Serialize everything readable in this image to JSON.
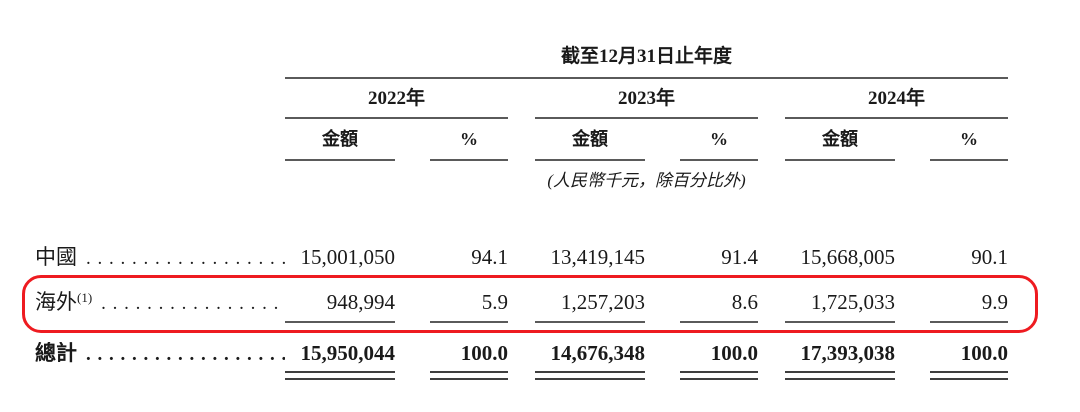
{
  "table": {
    "period_header": "截至12月31日止年度",
    "unit_note": "(人民幣千元，除百分比外)",
    "dot_leader": ". . . . . . . . . . . . . . . . . . . . . .",
    "year_groups": [
      {
        "year": "2022年",
        "amount_label": "金額",
        "percent_label": "%"
      },
      {
        "year": "2023年",
        "amount_label": "金額",
        "percent_label": "%"
      },
      {
        "year": "2024年",
        "amount_label": "金額",
        "percent_label": "%"
      }
    ],
    "rows": [
      {
        "label": "中國",
        "note_ref": "",
        "highlighted": false,
        "bold": false,
        "values": [
          "15,001,050",
          "94.1",
          "13,419,145",
          "91.4",
          "15,668,005",
          "90.1"
        ]
      },
      {
        "label": "海外",
        "note_ref": "(1)",
        "highlighted": true,
        "bold": false,
        "values": [
          "948,994",
          "5.9",
          "1,257,203",
          "8.6",
          "1,725,033",
          "9.9"
        ]
      },
      {
        "label": "總計",
        "note_ref": "",
        "highlighted": false,
        "bold": true,
        "values": [
          "15,950,044",
          "100.0",
          "14,676,348",
          "100.0",
          "17,393,038",
          "100.0"
        ]
      }
    ]
  },
  "colors": {
    "text": "#1a1a1a",
    "rule": "#5a5a5a",
    "highlight": "#ee1b20"
  }
}
